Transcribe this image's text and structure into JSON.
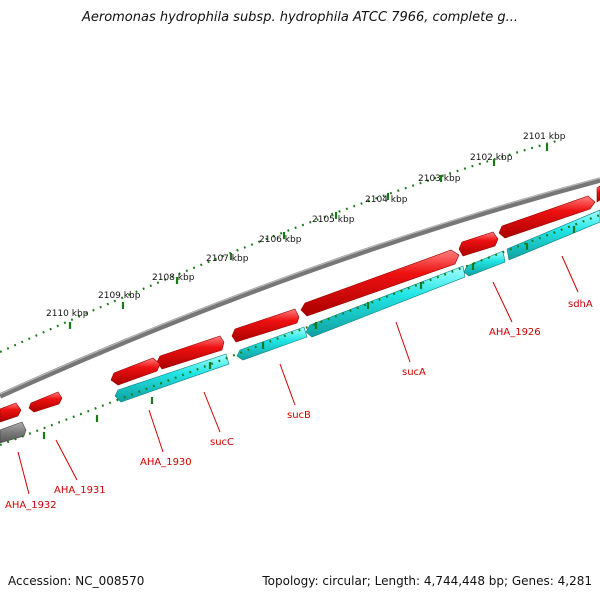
{
  "title": "Aeromonas hydrophila subsp. hydrophila ATCC 7966, complete g...",
  "footer": {
    "accession": "Accession: NC_008570",
    "summary": "Topology: circular; Length: 4,744,448 bp; Genes: 4,281"
  },
  "colors": {
    "forward_gene": "#ee1111",
    "reverse_gene": "#22e5e5",
    "backbone": "#808080",
    "tick": "#1a7a1a",
    "label": "#cc0000"
  },
  "kbp_labels": [
    "2101 kbp",
    "2102 kbp",
    "2103 kbp",
    "2104 kbp",
    "2105 kbp",
    "2106 kbp",
    "2107 kbp",
    "2108 kbp",
    "2109 kbp",
    "2110 kbp"
  ],
  "gene_labels": [
    "sdhA",
    "AHA_1926",
    "sucA",
    "sucB",
    "sucC",
    "AHA_1930",
    "AHA_1931",
    "AHA_1932"
  ]
}
